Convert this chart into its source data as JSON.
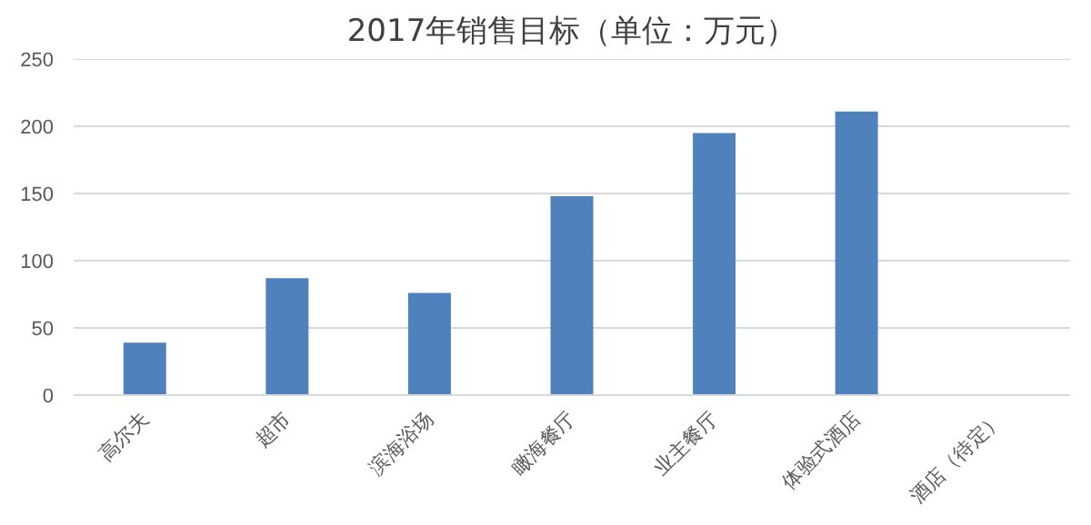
{
  "chart_data": {
    "type": "bar",
    "title": "2017年销售目标（单位：万元）",
    "categories": [
      "高尔夫",
      "超市",
      "滨海浴场",
      "瞰海餐厅",
      "业主餐厅",
      "体验式酒店",
      "酒店（待定）"
    ],
    "values": [
      39,
      87,
      76,
      148,
      195,
      211,
      null
    ],
    "color": "#4f81bd",
    "ylim": [
      0,
      250
    ],
    "yticks": [
      0,
      50,
      100,
      150,
      200,
      250
    ],
    "grid": "y"
  }
}
